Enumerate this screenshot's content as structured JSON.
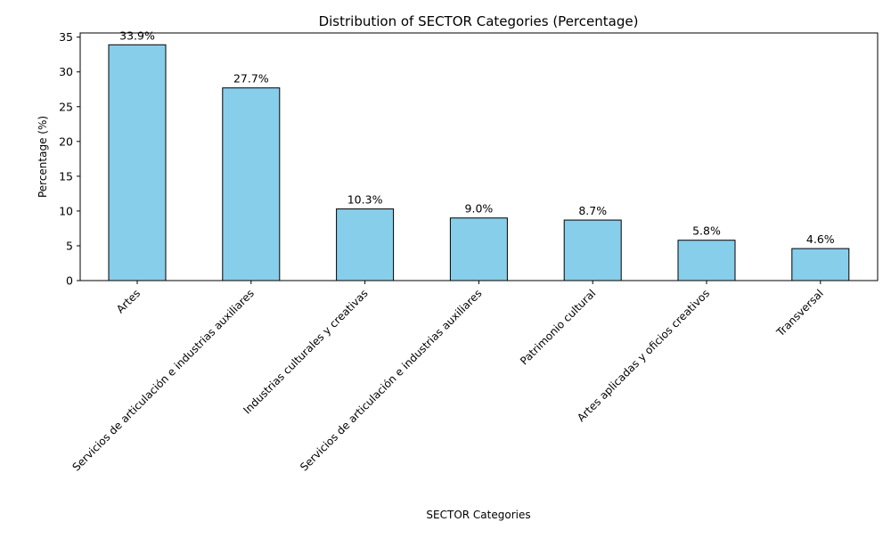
{
  "chart_data": {
    "type": "bar",
    "title": "Distribution of SECTOR Categories (Percentage)",
    "xlabel": "SECTOR Categories",
    "ylabel": "Percentage (%)",
    "categories": [
      "Artes",
      "Servicios de articulación e industrias auxiliares",
      "Industrias culturales y creativas",
      "Servicios de articulación e industrias auxiliares",
      "Patrimonio cultural",
      "Artes aplicadas y oficios creativos",
      "Transversal"
    ],
    "values": [
      33.9,
      27.7,
      10.3,
      9.0,
      8.7,
      5.8,
      4.6
    ],
    "data_labels": [
      "33.9%",
      "27.7%",
      "10.3%",
      "9.0%",
      "8.7%",
      "5.8%",
      "4.6%"
    ],
    "ylim": [
      0,
      35.6
    ],
    "yticks": [
      0,
      5,
      10,
      15,
      20,
      25,
      30,
      35
    ],
    "grid": false,
    "legend": "none",
    "colors": {
      "bar_fill": "#87CEEB",
      "bar_edge": "#000000",
      "axis": "#000000",
      "text": "#000000"
    }
  }
}
